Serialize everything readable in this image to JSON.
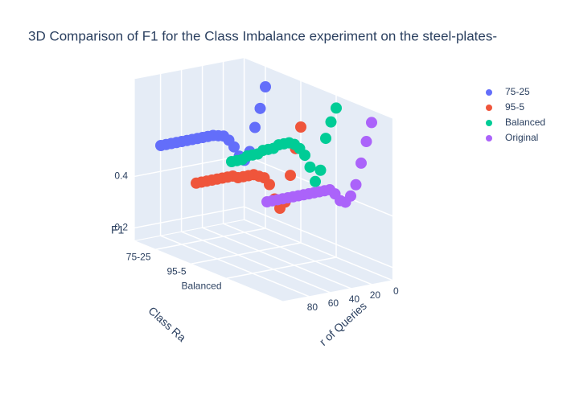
{
  "chart_data": {
    "type": "scatter3d",
    "title": "3D Comparison of F1 for the Class Imbalance experiment on the steel-plates-",
    "x_label": "r of Queries",
    "y_label": "Class Ra",
    "z_label": "F1",
    "x": [
      0,
      5,
      10,
      15,
      20,
      25,
      30,
      35,
      40,
      45,
      50,
      55,
      60,
      65,
      70,
      75,
      80,
      85,
      90,
      95,
      100
    ],
    "xlim": [
      0,
      105
    ],
    "xticks": [
      0,
      20,
      40,
      60,
      80
    ],
    "categories": [
      "75-25",
      "95-5",
      "Balanced"
    ],
    "zlim": [
      0.15,
      0.78
    ],
    "zticks": [
      0.2,
      0.4
    ],
    "series": [
      {
        "name": "75-25",
        "color": "#636efa",
        "values": [
          0.7,
          0.62,
          0.55,
          0.46,
          0.43,
          0.45,
          0.49,
          0.52,
          0.54,
          0.545,
          0.55,
          0.55,
          0.55,
          0.55,
          0.55,
          0.55,
          0.55,
          0.55,
          0.55,
          0.55,
          0.55
        ]
      },
      {
        "name": "95-5",
        "color": "#ef553b",
        "values": [
          0.6,
          0.52,
          0.42,
          0.32,
          0.3,
          0.34,
          0.4,
          0.43,
          0.44,
          0.45,
          0.45,
          0.45,
          0.45,
          0.46,
          0.46,
          0.46,
          0.46,
          0.46,
          0.46,
          0.46,
          0.46
        ]
      },
      {
        "name": "Balanced",
        "color": "#00cc96",
        "values": [
          0.73,
          0.68,
          0.62,
          0.5,
          0.46,
          0.52,
          0.57,
          0.6,
          0.62,
          0.63,
          0.63,
          0.63,
          0.62,
          0.62,
          0.62,
          0.61,
          0.61,
          0.61,
          0.6,
          0.6,
          0.6
        ]
      },
      {
        "name": "Original",
        "color": "#ab63fa",
        "values": [
          0.73,
          0.66,
          0.58,
          0.5,
          0.46,
          0.44,
          0.45,
          0.48,
          0.5,
          0.5,
          0.5,
          0.5,
          0.5,
          0.5,
          0.5,
          0.5,
          0.5,
          0.5,
          0.5,
          0.5,
          0.5
        ]
      }
    ]
  }
}
